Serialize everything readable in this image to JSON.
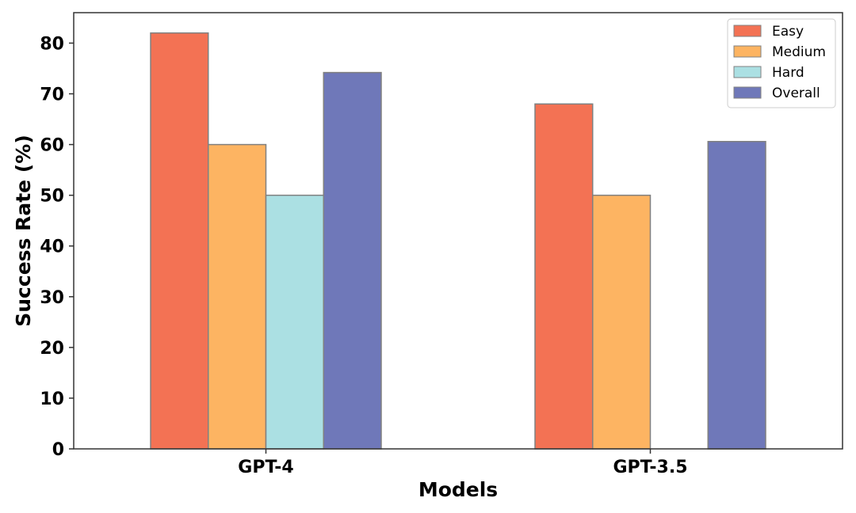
{
  "chart_data": {
    "type": "bar",
    "title": "",
    "xlabel": "Models",
    "ylabel": "Success Rate (%)",
    "categories": [
      "GPT-4",
      "GPT-3.5"
    ],
    "yticks": [
      0,
      10,
      20,
      30,
      40,
      50,
      60,
      70,
      80
    ],
    "ylim": [
      0,
      86
    ],
    "grid": false,
    "legend_position": "top-right",
    "series": [
      {
        "name": "Easy",
        "color": "#F37254",
        "values": [
          82,
          68
        ]
      },
      {
        "name": "Medium",
        "color": "#FDB462",
        "values": [
          60,
          50
        ]
      },
      {
        "name": "Hard",
        "color": "#ABE0E3",
        "values": [
          50,
          0
        ]
      },
      {
        "name": "Overall",
        "color": "#6F78B9",
        "values": [
          74.2,
          60.6
        ]
      }
    ]
  }
}
